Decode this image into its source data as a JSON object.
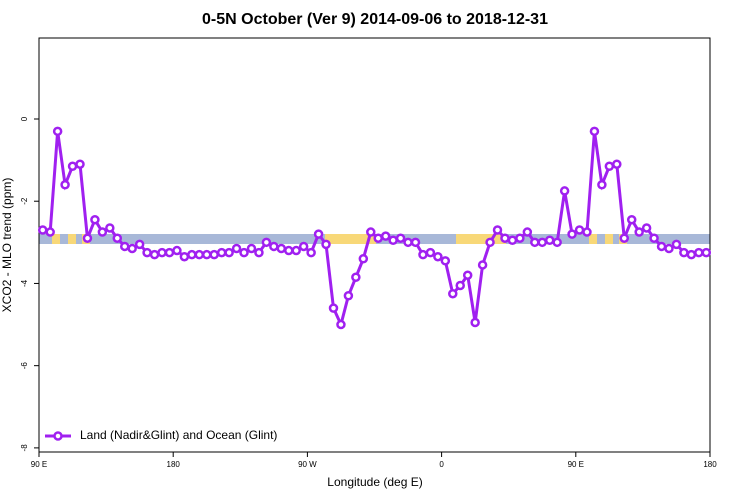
{
  "chart_data": {
    "type": "line",
    "title": "0-5N October (Ver 9)   2014-09-06 to 2018-12-31",
    "xlabel": "Longitude (deg E)",
    "ylabel": "XCO2 - MLO trend (ppm)",
    "xlim": [
      90,
      540
    ],
    "ylim": [
      -8.1,
      1.97
    ],
    "xticks": [
      {
        "value": 90,
        "label": "90 E"
      },
      180,
      {
        "value": 270,
        "label": "90 W"
      },
      {
        "value": 360,
        "label": "0"
      },
      {
        "value": 450,
        "label": "90 E"
      },
      {
        "value": 540,
        "label": "180"
      }
    ],
    "yticks": [
      0,
      -2,
      -4,
      -6,
      -8
    ],
    "legend": "bottom-left",
    "x": [
      92.5,
      97.5,
      102.5,
      107.5,
      112.5,
      117.5,
      122.5,
      127.5,
      132.5,
      137.5,
      142.5,
      147.5,
      152.5,
      157.5,
      162.5,
      167.5,
      172.5,
      177.5,
      182.5,
      187.5,
      192.5,
      197.5,
      202.5,
      207.5,
      212.5,
      217.5,
      222.5,
      227.5,
      232.5,
      237.5,
      242.5,
      247.5,
      252.5,
      257.5,
      262.5,
      267.5,
      272.5,
      277.5,
      282.5,
      287.5,
      292.5,
      297.5,
      302.5,
      307.5,
      312.5,
      317.5,
      322.5,
      327.5,
      332.5,
      337.5,
      342.5,
      347.5,
      352.5,
      357.5,
      362.5,
      367.5,
      372.5,
      377.5,
      382.5,
      387.5,
      392.5,
      397.5,
      402.5,
      407.5,
      412.5,
      417.5,
      422.5,
      427.5,
      432.5,
      437.5,
      442.5,
      447.5,
      452.5,
      457.5,
      462.5,
      467.5,
      472.5,
      477.5,
      482.5,
      487.5,
      492.5,
      497.5,
      502.5,
      507.5,
      512.5,
      517.5,
      522.5,
      527.5,
      532.5,
      537.5
    ],
    "series": [
      {
        "name": "Land (Nadir&Glint) and Ocean (Glint)",
        "color": "#a020f0",
        "values": [
          -2.7,
          -2.75,
          -0.3,
          -1.6,
          -1.15,
          -1.1,
          -2.9,
          -2.45,
          -2.75,
          -2.65,
          -2.9,
          -3.1,
          -3.15,
          -3.05,
          -3.25,
          -3.3,
          -3.25,
          -3.25,
          -3.2,
          -3.35,
          -3.3,
          -3.3,
          -3.3,
          -3.3,
          -3.25,
          -3.25,
          -3.15,
          -3.25,
          -3.15,
          -3.25,
          -3.0,
          -3.1,
          -3.15,
          -3.2,
          -3.2,
          -3.1,
          -3.25,
          -2.8,
          -3.05,
          -4.6,
          -5.0,
          -4.3,
          -3.85,
          -3.4,
          -2.75,
          -2.9,
          -2.85,
          -2.95,
          -2.9,
          -3.0,
          -3.0,
          -3.3,
          -3.25,
          -3.35,
          -3.45,
          -4.25,
          -4.05,
          -3.8,
          -4.95,
          -3.55,
          -3.0,
          -2.7,
          -2.9,
          -2.95,
          -2.9,
          -2.75,
          -3.0,
          -3.0,
          -2.95,
          -3.0,
          -1.75,
          -2.8,
          -2.7,
          -2.75,
          -0.3,
          -1.6,
          -1.15,
          -1.1,
          -2.9,
          -2.45,
          -2.75,
          -2.65,
          -2.9,
          -3.1,
          -3.15,
          -3.05,
          -3.25,
          -3.3,
          -3.25,
          -3.25
        ]
      }
    ]
  }
}
